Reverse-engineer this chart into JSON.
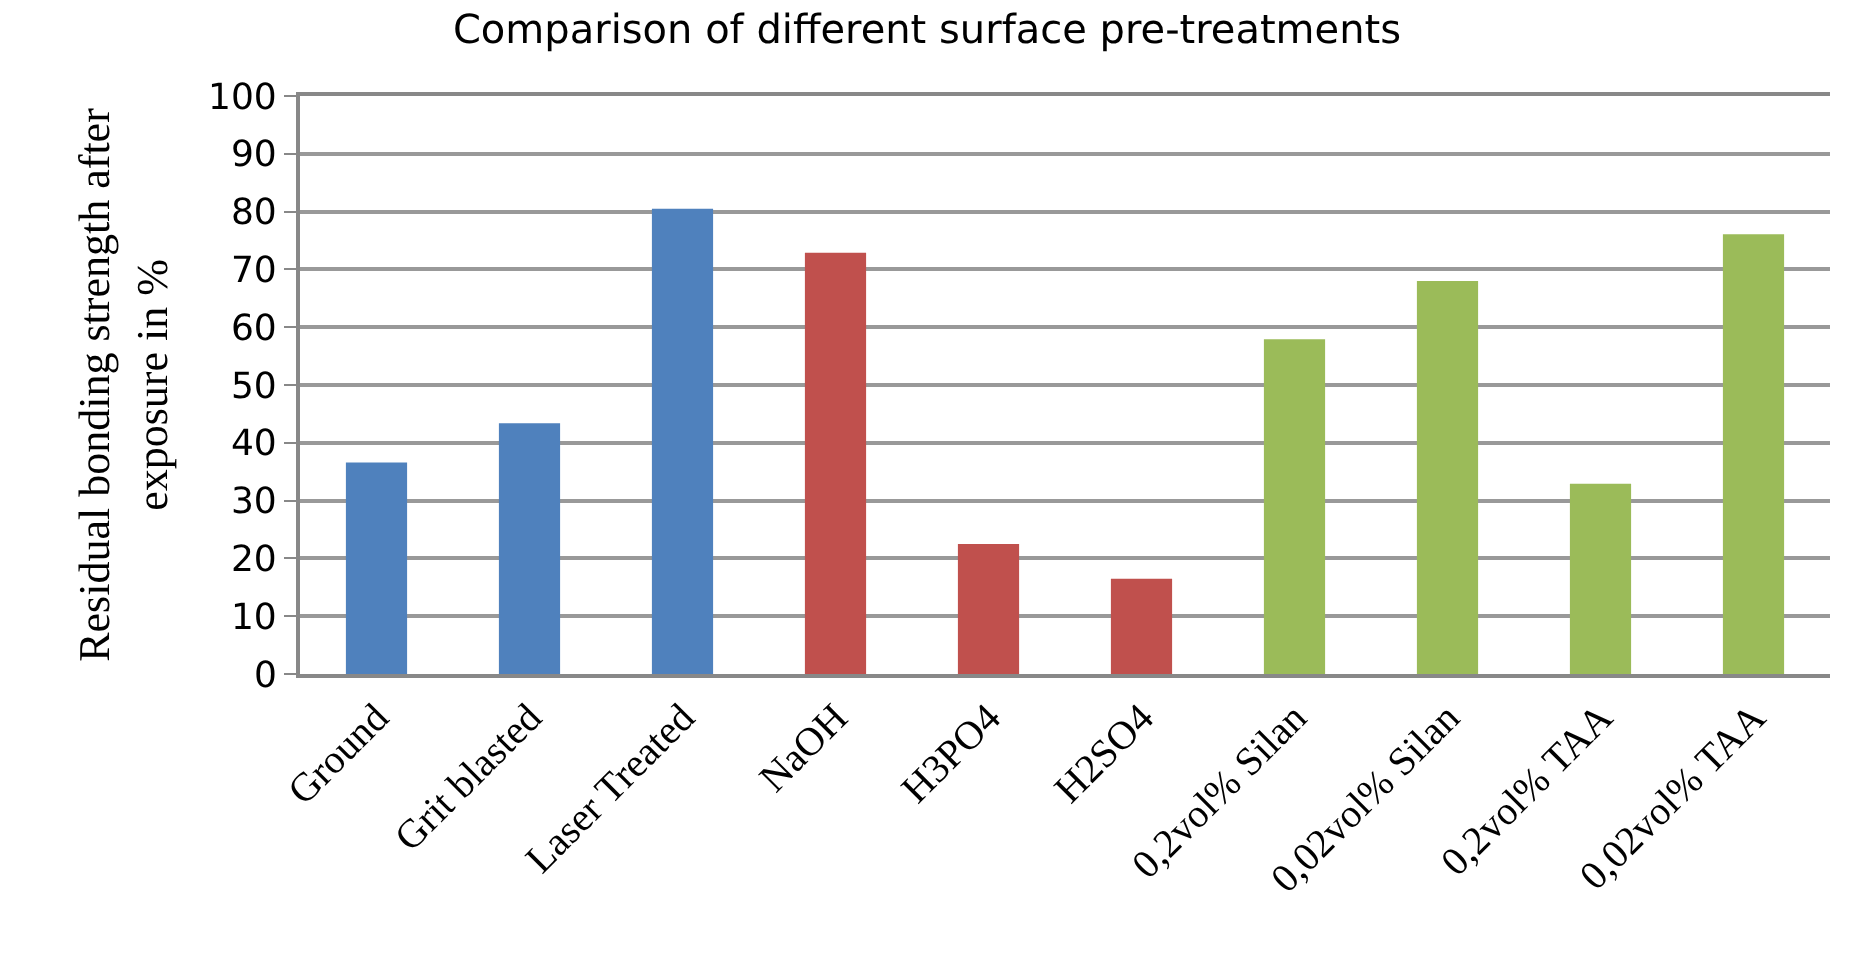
{
  "chart_data": {
    "type": "bar",
    "title": "Comparison of different surface pre-treatments",
    "ylabel": "Residual bonding strength after exposure in %",
    "categories": [
      "Ground",
      "Grit blasted",
      "Laser Treated",
      "NaOH",
      "H3PO4",
      "H2SO4",
      "0,2vol% Silan",
      "0,02vol% Silan",
      "0,2vol% TAA",
      "0,02vol% TAA"
    ],
    "values": [
      36.6,
      43.4,
      80.5,
      72.9,
      22.5,
      16.5,
      57.9,
      68.0,
      32.9,
      76.1
    ],
    "colors": [
      "#4f81bd",
      "#4f81bd",
      "#4f81bd",
      "#c0504d",
      "#c0504d",
      "#c0504d",
      "#9bbb59",
      "#9bbb59",
      "#9bbb59",
      "#9bbb59"
    ],
    "ylim": [
      0,
      100
    ],
    "yticks": [
      0,
      10,
      20,
      30,
      40,
      50,
      60,
      70,
      80,
      90,
      100
    ],
    "grid": "y"
  }
}
